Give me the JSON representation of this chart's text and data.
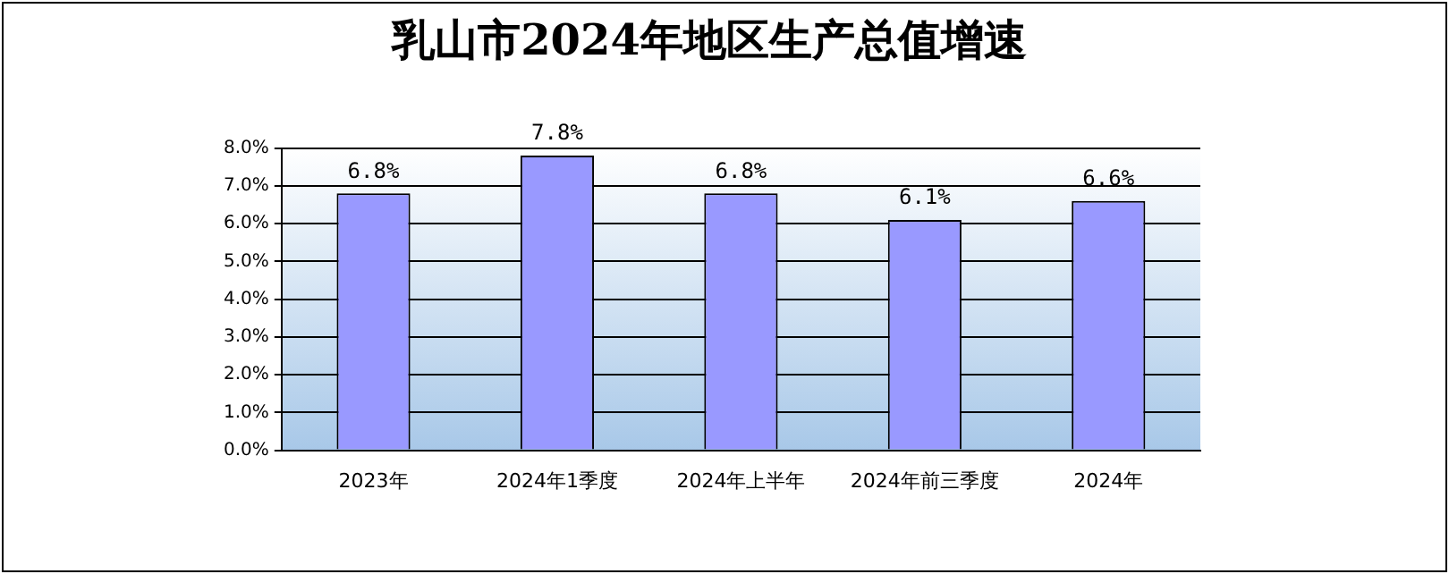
{
  "chart_data": {
    "type": "bar",
    "title": "乳山市2024年地区生产总值增速",
    "categories": [
      "2023年",
      "2024年1季度",
      "2024年上半年",
      "2024年前三季度",
      "2024年"
    ],
    "values": [
      6.8,
      7.8,
      6.8,
      6.1,
      6.6
    ],
    "value_labels": [
      "6.8%",
      "7.8%",
      "6.8%",
      "6.1%",
      "6.6%"
    ],
    "color": "#9999ff",
    "ylim": [
      0,
      8
    ],
    "yticks": [
      {
        "value": 0,
        "label": "0.0%"
      },
      {
        "value": 1,
        "label": "1.0%"
      },
      {
        "value": 2,
        "label": "2.0%"
      },
      {
        "value": 3,
        "label": "3.0%"
      },
      {
        "value": 4,
        "label": "4.0%"
      },
      {
        "value": 5,
        "label": "5.0%"
      },
      {
        "value": 6,
        "label": "6.0%"
      },
      {
        "value": 7,
        "label": "7.0%"
      },
      {
        "value": 8,
        "label": "8.0%"
      }
    ],
    "grid": "y",
    "legend": false
  }
}
